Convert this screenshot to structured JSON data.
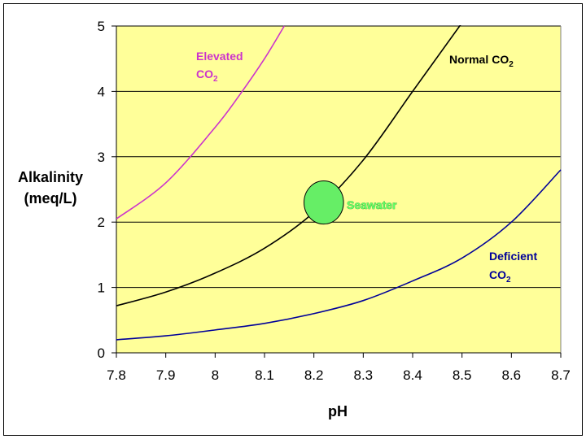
{
  "chart_data": {
    "type": "line",
    "title": "",
    "xlabel": "pH",
    "ylabel_lines": [
      "Alkalinity",
      "(meq/L)"
    ],
    "xlim": [
      7.8,
      8.7
    ],
    "ylim": [
      0,
      5
    ],
    "x_ticks": [
      "7.8",
      "7.9",
      "8",
      "8.1",
      "8.2",
      "8.3",
      "8.4",
      "8.5",
      "8.6",
      "8.7"
    ],
    "y_ticks": [
      "0",
      "1",
      "2",
      "3",
      "4",
      "5"
    ],
    "grid": "horizontal",
    "plot_background": "#ffff99",
    "series": [
      {
        "label_main": "Elevated",
        "label_co": "CO",
        "label_sub": "2",
        "color": "#cc33cc",
        "points": [
          [
            7.8,
            2.05
          ],
          [
            7.9,
            2.6
          ],
          [
            8.0,
            3.45
          ],
          [
            8.05,
            3.95
          ],
          [
            8.1,
            4.5
          ],
          [
            8.14,
            5.0
          ]
        ]
      },
      {
        "label_main": "Normal",
        "label_co": "CO",
        "label_sub": "2",
        "color": "#000000",
        "points": [
          [
            7.8,
            0.72
          ],
          [
            7.9,
            0.93
          ],
          [
            8.0,
            1.22
          ],
          [
            8.1,
            1.6
          ],
          [
            8.2,
            2.15
          ],
          [
            8.3,
            2.95
          ],
          [
            8.4,
            4.0
          ],
          [
            8.5,
            5.05
          ]
        ]
      },
      {
        "label_main": "Deficient",
        "label_co": "CO",
        "label_sub": "2",
        "color": "#000099",
        "points": [
          [
            7.8,
            0.2
          ],
          [
            7.9,
            0.26
          ],
          [
            8.0,
            0.35
          ],
          [
            8.1,
            0.45
          ],
          [
            8.2,
            0.6
          ],
          [
            8.3,
            0.8
          ],
          [
            8.4,
            1.1
          ],
          [
            8.5,
            1.45
          ],
          [
            8.6,
            2.0
          ],
          [
            8.7,
            2.8
          ]
        ]
      }
    ],
    "annotations": [
      {
        "text": "Seawater",
        "shape": "ellipse",
        "center": [
          8.22,
          2.3
        ],
        "radius_ph": 0.04,
        "radius_alk": 0.33,
        "fill": "#66ee66",
        "stroke": "#000000"
      }
    ]
  }
}
